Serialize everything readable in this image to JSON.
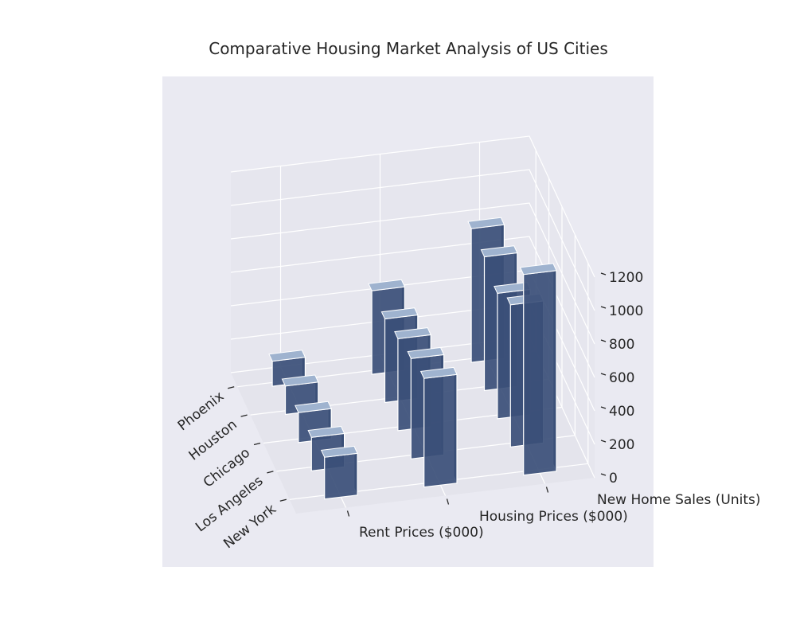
{
  "chart_data": {
    "type": "bar",
    "title": "Comparative Housing Market Analysis of US Cities",
    "categories": [
      "New York",
      "Los Angeles",
      "Chicago",
      "Houston",
      "Phoenix"
    ],
    "series": [
      {
        "name": "Rent Prices ($000)",
        "values": [
          250,
          200,
          180,
          170,
          150
        ]
      },
      {
        "name": "Housing Prices ($000)",
        "values": [
          650,
          600,
          550,
          500,
          500
        ]
      },
      {
        "name": "New Home Sales (Units)",
        "values": [
          1200,
          850,
          750,
          800,
          800
        ]
      }
    ],
    "zlim": [
      0,
      1200
    ],
    "zticks": [
      "0",
      "200",
      "400",
      "600",
      "800",
      "1000",
      "1200"
    ],
    "grid": true,
    "colors": {
      "background": "#eaeaf2",
      "bar_face": "#3b4f78",
      "bar_side": "#2c3d60",
      "bar_top": "#9fb3cf",
      "bar_edge": "#ffffff",
      "grid": "#ffffff",
      "pane_floor": "#e4e4ec",
      "pane_back": "#e6e6ee"
    }
  }
}
